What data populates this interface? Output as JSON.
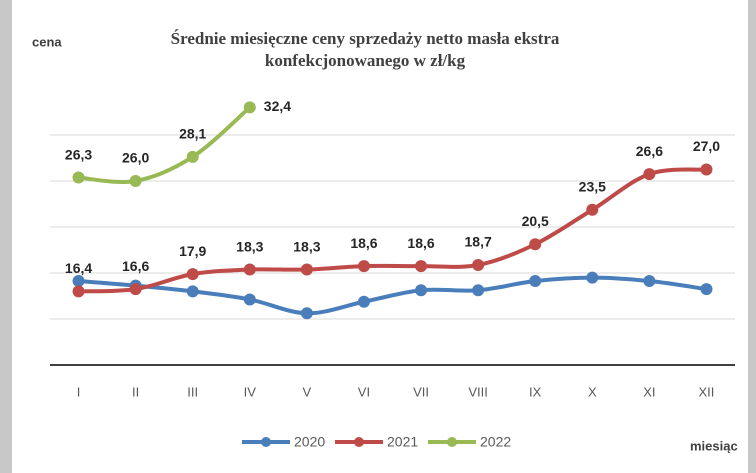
{
  "chart_data": {
    "type": "line",
    "title": "Średnie miesięczne ceny sprzedaży  netto masła ekstra",
    "subtitle": "konfekcjonowanego w zł/kg",
    "y_label": "cena",
    "x_label": "miesiąc",
    "categories": [
      "I",
      "II",
      "III",
      "IV",
      "V",
      "VI",
      "VII",
      "VIII",
      "IX",
      "X",
      "XI",
      "XII"
    ],
    "series": [
      {
        "name": "2020",
        "color": "#4a7ebb",
        "values": [
          17.3,
          16.9,
          16.4,
          15.7,
          14.5,
          15.5,
          16.5,
          16.5,
          17.3,
          17.6,
          17.3,
          16.6
        ]
      },
      {
        "name": "2021",
        "color": "#be4b48",
        "values": [
          16.4,
          16.6,
          17.9,
          18.3,
          18.3,
          18.6,
          18.6,
          18.7,
          20.5,
          23.5,
          26.6,
          27.0
        ],
        "value_labels": [
          "16,4",
          "16,6",
          "17,9",
          "18,3",
          "18,3",
          "18,6",
          "18,6",
          "18,7",
          "20,5",
          "23,5",
          "26,6",
          "27,0"
        ]
      },
      {
        "name": "2022",
        "color": "#98b954",
        "values": [
          26.3,
          26.0,
          28.1,
          32.4,
          null,
          null,
          null,
          null,
          null,
          null,
          null,
          null
        ],
        "value_labels": [
          "26,3",
          "26,0",
          "28,1",
          "32,4",
          null,
          null,
          null,
          null,
          null,
          null,
          null,
          null
        ]
      }
    ],
    "ylim": [
      10,
      34
    ],
    "yticks": [
      10,
      14,
      18,
      22,
      26,
      30
    ],
    "grid": true,
    "legend": "bottom"
  }
}
